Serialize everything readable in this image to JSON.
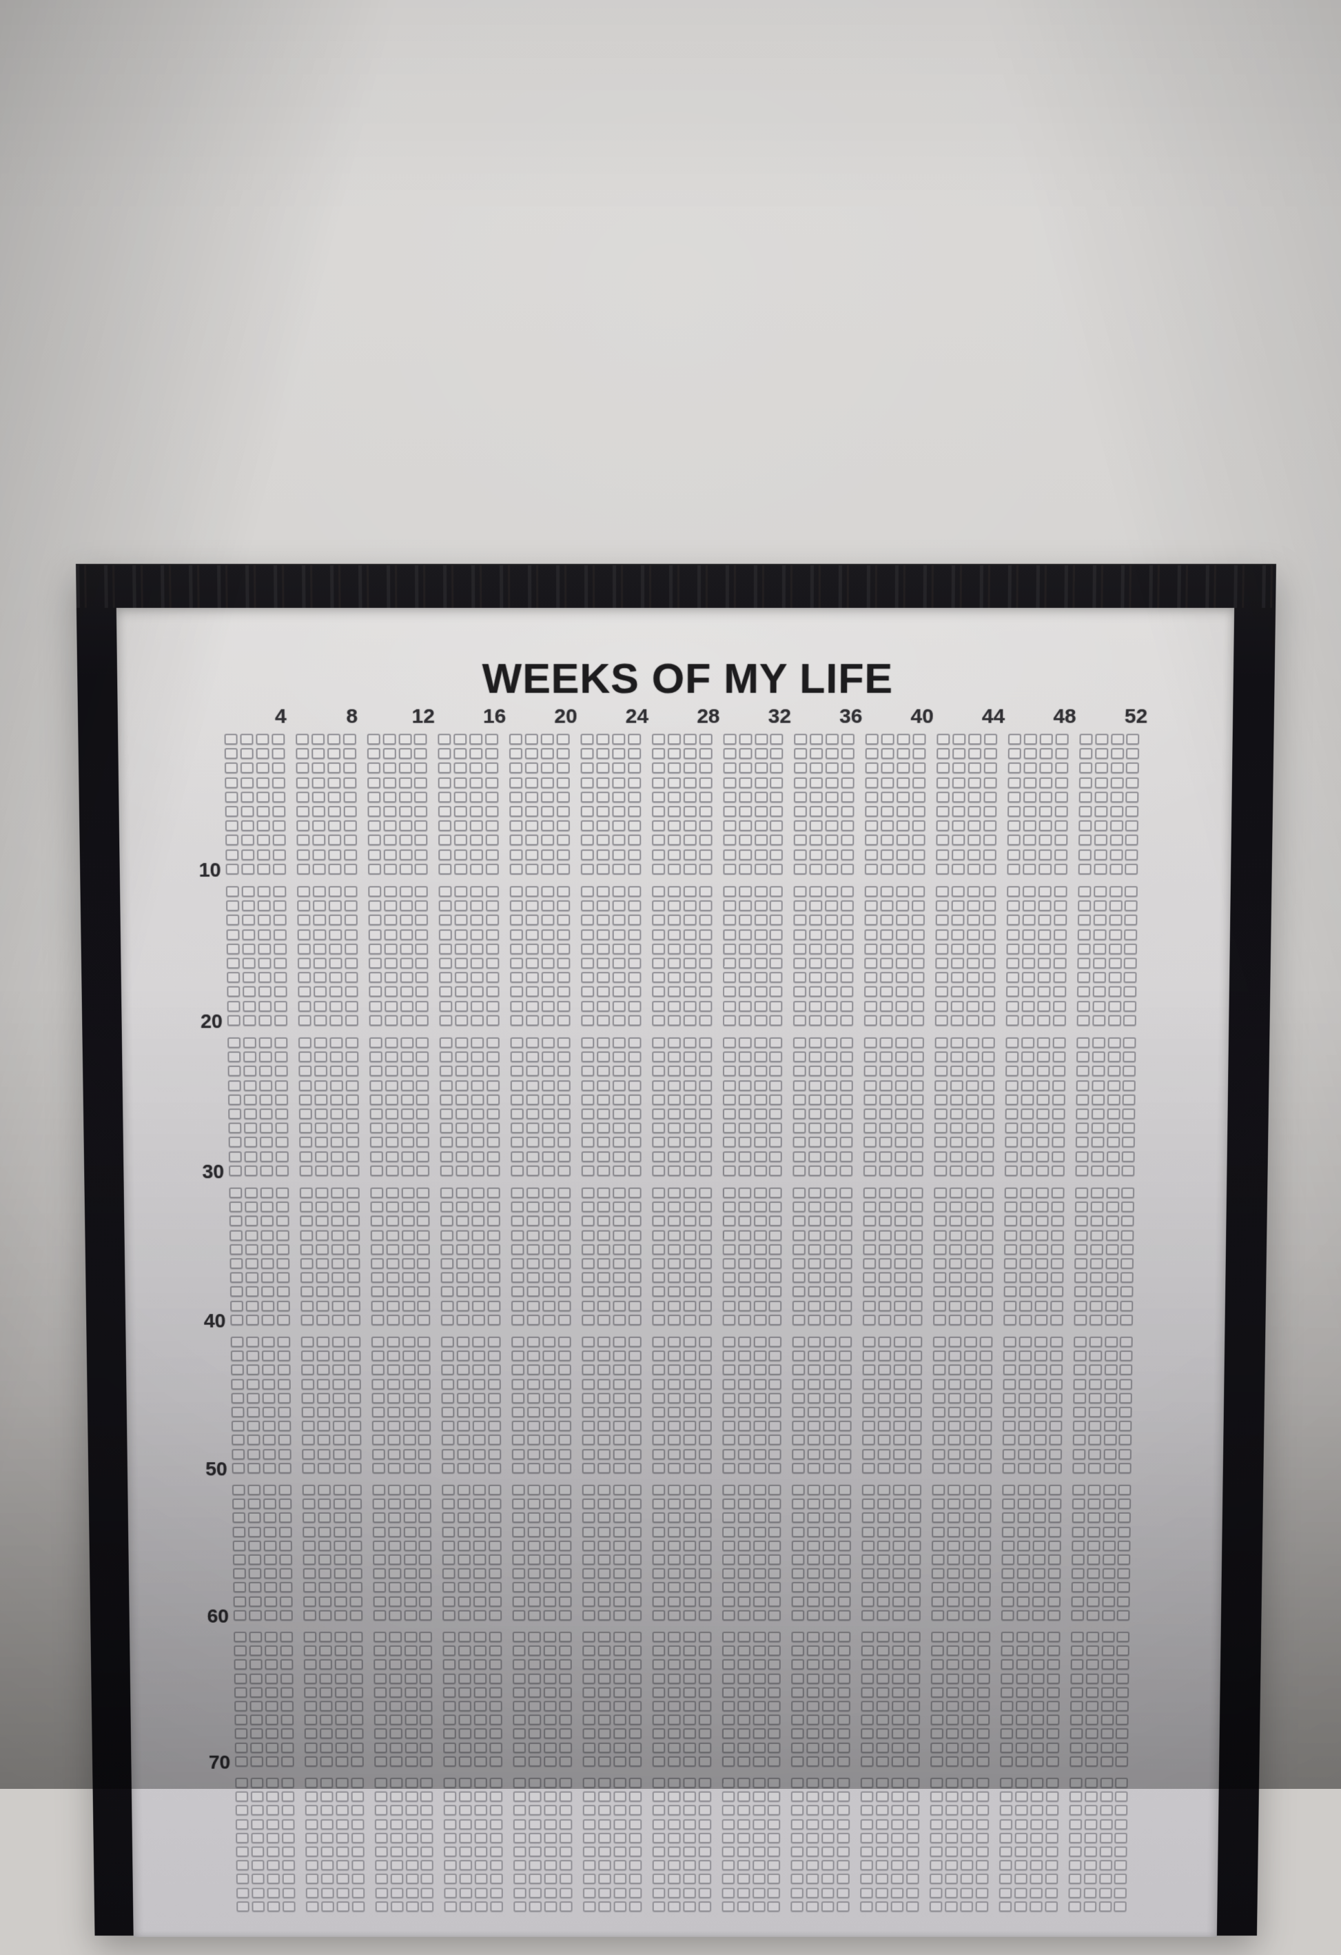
{
  "scene": {
    "description": "Photograph of a black-framed life-calendar poster hanging on a plain grey wall, bottom of poster cropped by photo edge",
    "wall_color": "#cfccc9",
    "frame_color": "#131217",
    "paper_color": "#d6d4d7",
    "grid_ink_color": "#8e8d93",
    "title_ink_color": "#1d1c1e"
  },
  "poster": {
    "title": "WEEKS OF MY LIFE",
    "week_labels": [
      "4",
      "8",
      "12",
      "16",
      "20",
      "24",
      "28",
      "32",
      "36",
      "40",
      "44",
      "48",
      "52"
    ],
    "age_labels": [
      "10",
      "20",
      "30",
      "40",
      "50",
      "60",
      "70"
    ],
    "weeks_per_row": 52,
    "weeks_per_group": 4,
    "rows_per_block": 10,
    "blocks_rendered": 8,
    "all_cells_empty": true
  },
  "chart_data": {
    "type": "table",
    "title": "WEEKS OF MY LIFE",
    "x_tick_labels": [
      "4",
      "8",
      "12",
      "16",
      "20",
      "24",
      "28",
      "32",
      "36",
      "40",
      "44",
      "48",
      "52"
    ],
    "y_tick_labels": [
      "10",
      "20",
      "30",
      "40",
      "50",
      "60",
      "70"
    ],
    "columns": 52,
    "rows_fully_visible": 70,
    "rows_partially_visible": 1,
    "cell_values": "every week square is an empty outline; none are filled or marked"
  }
}
